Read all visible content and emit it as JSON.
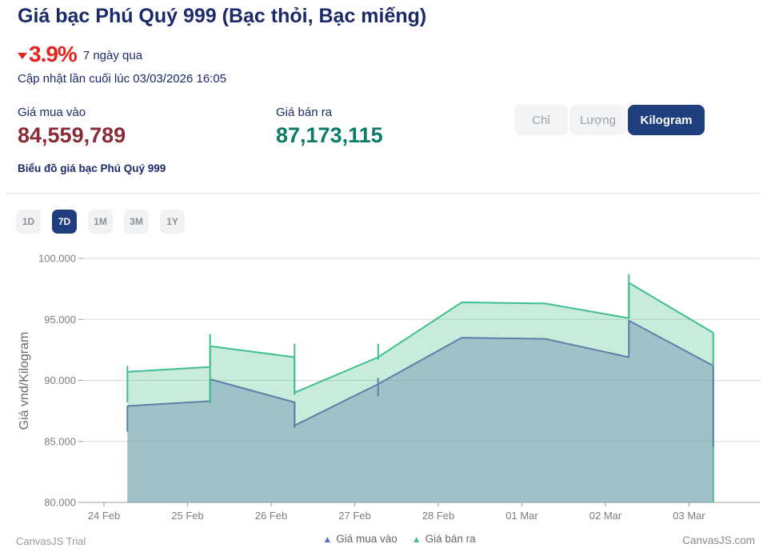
{
  "header": {
    "title": "Giá bạc Phú Quý 999 (Bạc thỏi, Bạc miếng)",
    "change_percent": "3.9%",
    "change_direction": "down",
    "change_color": "#e3231c",
    "change_period": "7 ngày qua",
    "last_updated": "Cập nhật lần cuối lúc 03/03/2026 16:05"
  },
  "prices": {
    "buy_label": "Giá mua vào",
    "buy_value": "84,559,789",
    "buy_color": "#8a2b38",
    "sell_label": "Giá bán ra",
    "sell_value": "87,173,115",
    "sell_color": "#0c7c67"
  },
  "unit_toggle": {
    "options": [
      "Chỉ",
      "Lượng",
      "Kilogram"
    ],
    "selected": "Kilogram",
    "selected_bg": "#1f3e7e"
  },
  "chart_section_title": "Biểu đồ giá bạc Phú Quý 999",
  "range_buttons": {
    "options": [
      "1D",
      "7D",
      "1M",
      "3M",
      "1Y"
    ],
    "selected": "7D"
  },
  "watermarks": {
    "trial": "CanvasJS Trial",
    "site": "CanvasJS.com"
  },
  "chart_data": {
    "type": "area",
    "y_axis_title": "Giá vnd/Kilogram",
    "ylim": [
      80,
      100
    ],
    "grid": true,
    "legend_position": "bottom",
    "y_values_in": "thousands of VND per kilogram",
    "x_ticks": [
      "24 Feb",
      "25 Feb",
      "26 Feb",
      "27 Feb",
      "28 Feb",
      "01 Mar",
      "02 Mar",
      "03 Mar"
    ],
    "y_ticks": [
      {
        "label": "100.000",
        "value": 100
      },
      {
        "label": "95.000",
        "value": 95
      },
      {
        "label": "90.000",
        "value": 90
      },
      {
        "label": "85.000",
        "value": 85
      },
      {
        "label": "80.000",
        "value": 80
      }
    ],
    "series": [
      {
        "name": "Giá mua vào",
        "color": "#5c80a8",
        "legend_color": "#5b6fa8",
        "fill": "rgba(92,128,168,0.38)",
        "points": [
          [
            0.28,
            87.9
          ],
          [
            1.27,
            88.3
          ],
          [
            1.27,
            90.1
          ],
          [
            2.28,
            88.2
          ],
          [
            2.28,
            86.3
          ],
          [
            3.28,
            89.7
          ],
          [
            4.28,
            93.5
          ],
          [
            5.28,
            93.4
          ],
          [
            6.28,
            91.9
          ],
          [
            6.28,
            94.9
          ],
          [
            7.29,
            91.2
          ]
        ],
        "wicks": [
          [
            0.28,
            85.8,
            87.9
          ],
          [
            2.28,
            86.1,
            88.2
          ],
          [
            3.28,
            88.7,
            90.2
          ],
          [
            7.29,
            84.56,
            91.2
          ]
        ],
        "last_value_vnd": "84,559,789"
      },
      {
        "name": "Giá bán ra",
        "color": "#3fbf8f",
        "legend_color": "#45bd8c",
        "fill": "rgba(77,189,140,0.30)",
        "points": [
          [
            0.28,
            90.7
          ],
          [
            1.27,
            91.1
          ],
          [
            1.27,
            92.8
          ],
          [
            2.28,
            91.9
          ],
          [
            2.28,
            89.0
          ],
          [
            3.28,
            91.9
          ],
          [
            4.28,
            96.4
          ],
          [
            5.28,
            96.3
          ],
          [
            6.28,
            95.1
          ],
          [
            6.28,
            98.0
          ],
          [
            7.29,
            93.9
          ]
        ],
        "wicks": [
          [
            0.28,
            88.2,
            91.2
          ],
          [
            1.27,
            88.1,
            93.8
          ],
          [
            2.28,
            88.8,
            93.0
          ],
          [
            3.28,
            91.7,
            93.0
          ],
          [
            6.28,
            95.1,
            98.7
          ],
          [
            7.29,
            80.0,
            93.9
          ]
        ],
        "last_value_vnd": "87,173,115"
      }
    ]
  }
}
